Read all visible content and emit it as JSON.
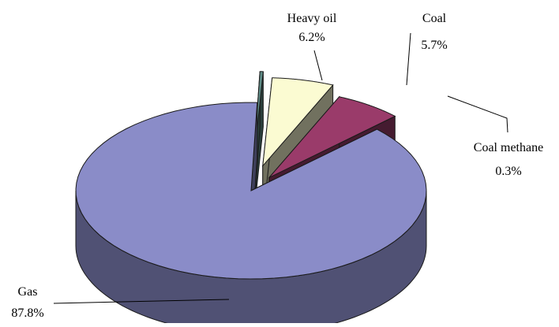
{
  "chart_data": {
    "type": "pie",
    "style": "3d-exploded",
    "slices": [
      {
        "label": "Gas",
        "value": 87.8,
        "value_label": "87.8%",
        "color": "#8a8cc8"
      },
      {
        "label": "Heavy oil",
        "value": 6.2,
        "value_label": "6.2%",
        "color": "#9a3b6a"
      },
      {
        "label": "Coal",
        "value": 5.7,
        "value_label": "5.7%",
        "color": "#fbfbd2"
      },
      {
        "label": "Coal methane",
        "value": 0.3,
        "value_label": "0.3%",
        "color": "#5f8b86"
      }
    ],
    "legend": "none",
    "labels_outside": true
  }
}
